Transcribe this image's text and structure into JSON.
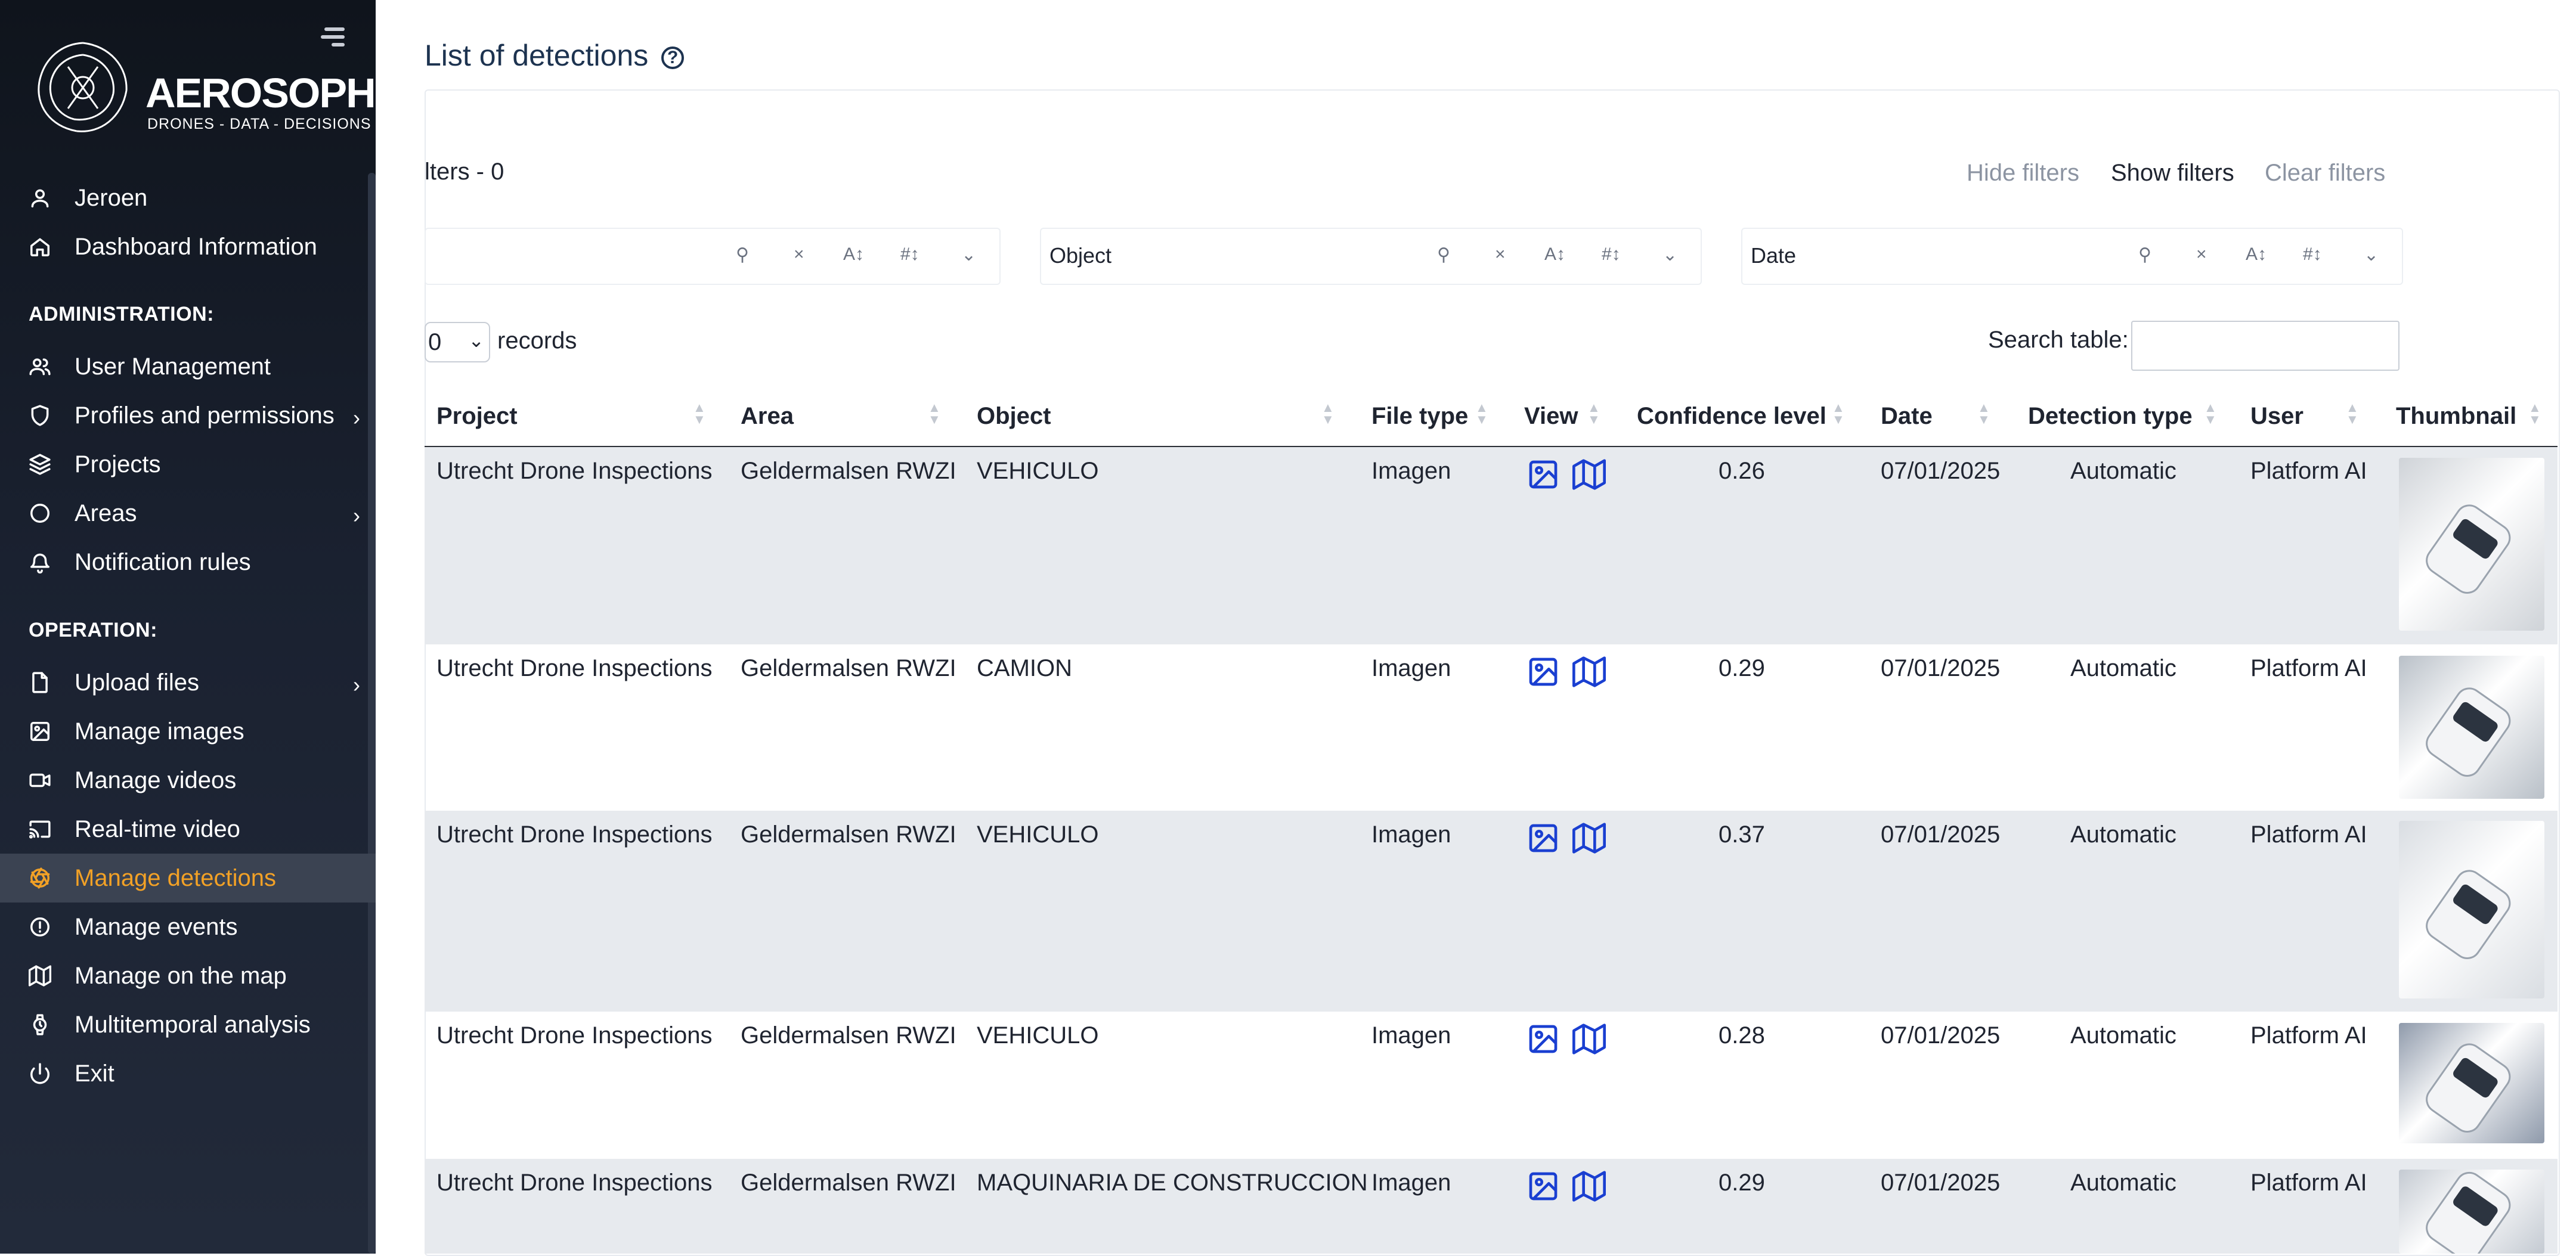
{
  "sidebar": {
    "logo": {
      "name": "AEROSOPHIA",
      "tagline": "DRONES - DATA - DECISIONS"
    },
    "user_items": [
      {
        "label": "Jeroen",
        "icon": "user-icon"
      },
      {
        "label": "Dashboard Information",
        "icon": "home-icon"
      }
    ],
    "admin_title": "ADMINISTRATION:",
    "admin_items": [
      {
        "label": "User Management",
        "icon": "users-icon"
      },
      {
        "label": "Profiles and permissions",
        "icon": "shield-icon",
        "chevron": "›"
      },
      {
        "label": "Projects",
        "icon": "layers-icon"
      },
      {
        "label": "Areas",
        "icon": "circle-icon",
        "chevron": "›"
      },
      {
        "label": "Notification rules",
        "icon": "bell-icon"
      }
    ],
    "operation_title": "OPERATION:",
    "operation_items": [
      {
        "label": "Upload files",
        "icon": "file-icon",
        "chevron": "›"
      },
      {
        "label": "Manage images",
        "icon": "image-icon"
      },
      {
        "label": "Manage videos",
        "icon": "video-icon"
      },
      {
        "label": "Real-time video",
        "icon": "cast-icon"
      },
      {
        "label": "Manage detections",
        "icon": "aperture-icon",
        "active": true
      },
      {
        "label": "Manage events",
        "icon": "alert-circle-icon"
      },
      {
        "label": "Manage on the map",
        "icon": "map-icon"
      },
      {
        "label": "Multitemporal analysis",
        "icon": "watch-icon"
      },
      {
        "label": "Exit",
        "icon": "power-icon"
      }
    ]
  },
  "main": {
    "title": "List of detections",
    "help_glyph": "?",
    "filters": {
      "count_label": "lters - 0",
      "hide_label": "Hide filters",
      "show_label": "Show filters",
      "clear_label": "Clear filters",
      "fields": [
        {
          "placeholder": ""
        },
        {
          "placeholder": "Object"
        },
        {
          "placeholder": "Date"
        }
      ],
      "icons": {
        "search": "⚲",
        "clear": "×",
        "text_sort": "A↕",
        "num_sort": "#↕",
        "dropdown": "⌄"
      }
    },
    "length": {
      "value": "0",
      "suffix": "records"
    },
    "search_label": "Search table:",
    "search_value": "",
    "columns": [
      "Project",
      "Area",
      "Object",
      "File type",
      "View",
      "Confidence level",
      "Date",
      "Detection type",
      "User",
      "Thumbnail"
    ],
    "rows": [
      {
        "project": "Utrecht Drone Inspections",
        "area": "Geldermalsen RWZI",
        "object": "VEHICULO",
        "file_type": "Imagen",
        "confidence": "0.26",
        "date": "07/01/2025",
        "detection_type": "Automatic",
        "user": "Platform AI",
        "thumb_color": "#cfd3d8"
      },
      {
        "project": "Utrecht Drone Inspections",
        "area": "Geldermalsen RWZI",
        "object": "CAMION",
        "file_type": "Imagen",
        "confidence": "0.29",
        "date": "07/01/2025",
        "detection_type": "Automatic",
        "user": "Platform AI",
        "thumb_color": "#b9c0c8"
      },
      {
        "project": "Utrecht Drone Inspections",
        "area": "Geldermalsen RWZI",
        "object": "VEHICULO",
        "file_type": "Imagen",
        "confidence": "0.37",
        "date": "07/01/2025",
        "detection_type": "Automatic",
        "user": "Platform AI",
        "thumb_color": "#d9dde2"
      },
      {
        "project": "Utrecht Drone Inspections",
        "area": "Geldermalsen RWZI",
        "object": "VEHICULO",
        "file_type": "Imagen",
        "confidence": "0.28",
        "date": "07/01/2025",
        "detection_type": "Automatic",
        "user": "Platform AI",
        "thumb_color": "#8f9aab"
      },
      {
        "project": "Utrecht Drone Inspections",
        "area": "Geldermalsen RWZI",
        "object": "MAQUINARIA DE CONSTRUCCION",
        "file_type": "Imagen",
        "confidence": "0.29",
        "date": "07/01/2025",
        "detection_type": "Automatic",
        "user": "Platform AI",
        "thumb_color": "#c4cad2"
      }
    ],
    "colors": {
      "accent": "#f2a126",
      "view_icon": "#1a3fd1",
      "row_stripe": "#e7eaee"
    }
  }
}
